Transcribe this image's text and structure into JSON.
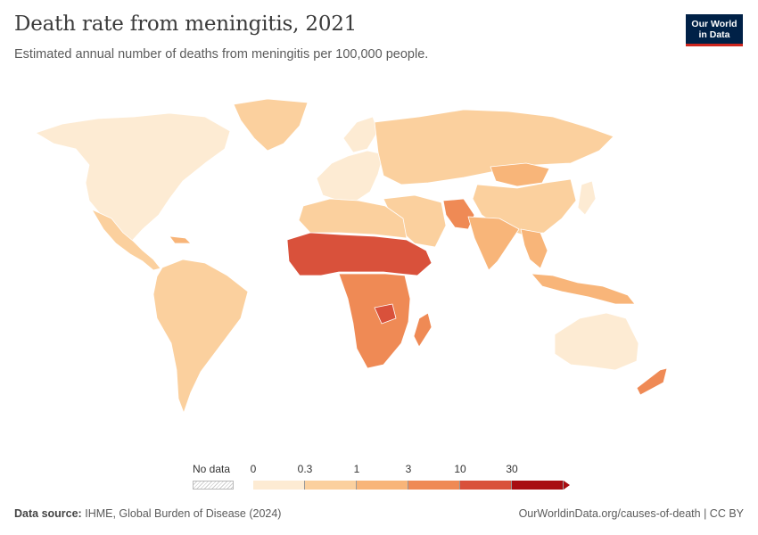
{
  "header": {
    "title": "Death rate from meningitis, 2021",
    "subtitle": "Estimated annual number of deaths from meningitis per 100,000 people.",
    "logo_line1": "Our World",
    "logo_line2": "in Data"
  },
  "chart_data": {
    "type": "choropleth-map",
    "title": "Death rate from meningitis, 2021",
    "subtitle": "Estimated annual number of deaths from meningitis per 100,000 people.",
    "legend": {
      "no_data_label": "No data",
      "thresholds": [
        "0",
        "0.3",
        "1",
        "3",
        "10",
        "30"
      ],
      "bins": [
        {
          "range": "0–0.3",
          "color": "#fdebd3"
        },
        {
          "range": "0.3–1",
          "color": "#fbd09e"
        },
        {
          "range": "1–3",
          "color": "#f8b579"
        },
        {
          "range": "3–10",
          "color": "#ef8a55"
        },
        {
          "range": "10–30",
          "color": "#d9513b"
        },
        {
          "range": "30+",
          "color": "#a80d12"
        }
      ]
    },
    "regions": [
      {
        "name": "North America",
        "bin": "0–0.3"
      },
      {
        "name": "Greenland",
        "bin": "0.3–1"
      },
      {
        "name": "Western Europe",
        "bin": "0–0.3"
      },
      {
        "name": "Eastern Europe & Russia",
        "bin": "0.3–1"
      },
      {
        "name": "Mongolia",
        "bin": "1–3"
      },
      {
        "name": "China",
        "bin": "0.3–1"
      },
      {
        "name": "Australia",
        "bin": "0–0.3"
      },
      {
        "name": "South America",
        "bin": "0.3–1"
      },
      {
        "name": "North Africa",
        "bin": "0.3–1"
      },
      {
        "name": "Sahel & Horn of Africa",
        "bin": "10–30"
      },
      {
        "name": "Central & Southern Africa",
        "bin": "3–10"
      },
      {
        "name": "Pakistan & Afghanistan",
        "bin": "3–10"
      },
      {
        "name": "India",
        "bin": "1–3"
      },
      {
        "name": "Southeast Asia",
        "bin": "1–3"
      },
      {
        "name": "New Zealand",
        "bin": "3–10"
      }
    ]
  },
  "footer": {
    "source_label": "Data source:",
    "source_text": "IHME, Global Burden of Disease (2024)",
    "url_text": "OurWorldinData.org/causes-of-death | CC BY"
  }
}
